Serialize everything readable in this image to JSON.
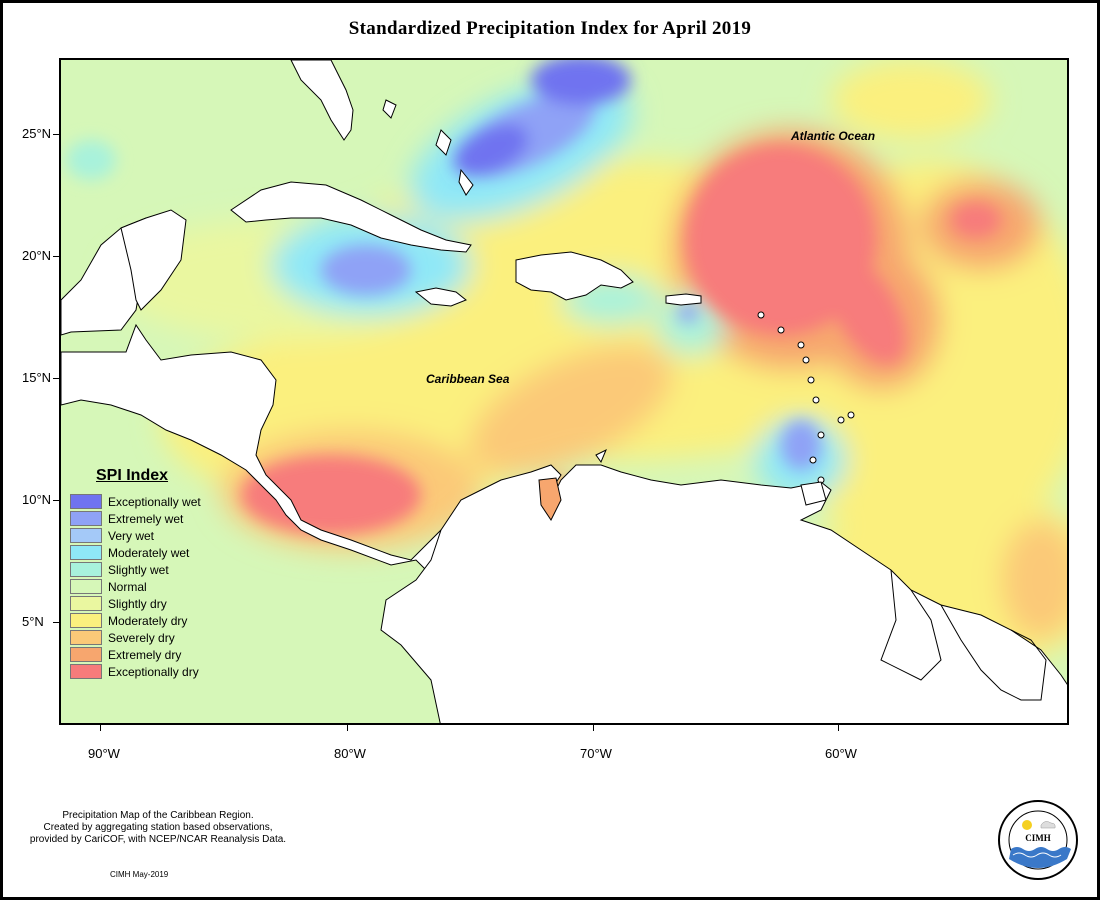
{
  "title": "Standardized Precipitation Index for April 2019",
  "map_labels": {
    "atlantic": "Atlantic Ocean",
    "caribbean": "Caribbean Sea"
  },
  "lat_labels": [
    "25°N",
    "20°N",
    "15°N",
    "10°N",
    "5°N"
  ],
  "lon_labels": [
    "90°W",
    "80°W",
    "70°W",
    "60°W"
  ],
  "legend": {
    "title": "SPI Index",
    "items": [
      {
        "label": "Exceptionally wet",
        "color": "#6f73f0"
      },
      {
        "label": "Extremely wet",
        "color": "#8fa2f6"
      },
      {
        "label": "Very wet",
        "color": "#a4c9f8"
      },
      {
        "label": "Moderately wet",
        "color": "#8fe8f7"
      },
      {
        "label": "Slightly wet",
        "color": "#a8f2dc"
      },
      {
        "label": "Normal",
        "color": "#d6f7b8"
      },
      {
        "label": "Slightly dry",
        "color": "#eaf7a0"
      },
      {
        "label": "Moderately dry",
        "color": "#fbf07e"
      },
      {
        "label": "Severely dry",
        "color": "#fbc978"
      },
      {
        "label": "Extremely dry",
        "color": "#f7a66e"
      },
      {
        "label": "Exceptionally dry",
        "color": "#f77b7b"
      }
    ]
  },
  "credit_lines": [
    "Precipitation Map of the Caribbean Region.",
    "Created by aggregating station based observations,",
    "provided by CariCOF, with NCEP/NCAR Reanalysis Data."
  ],
  "date_text": "CIMH May-2019",
  "logo_text": "CIMH"
}
